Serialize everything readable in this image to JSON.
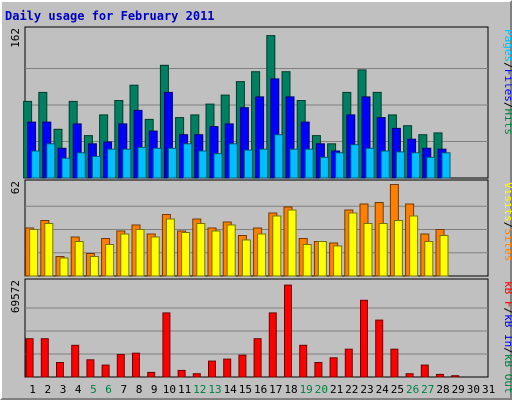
{
  "title": "Daily usage for February 2011",
  "chart_data": [
    {
      "type": "bar",
      "panel": "hits-files-pages",
      "max_label": "162",
      "ylim": [
        0,
        162
      ],
      "side_labels": [
        {
          "text": "Pages",
          "color": "#00c0ff"
        },
        {
          "text": "/",
          "color": "#000000"
        },
        {
          "text": "Files",
          "color": "#0000ff"
        },
        {
          "text": "/",
          "color": "#000000"
        },
        {
          "text": "Hits",
          "color": "#008040"
        }
      ],
      "categories": [
        "1",
        "2",
        "3",
        "4",
        "5",
        "6",
        "7",
        "8",
        "9",
        "10",
        "11",
        "12",
        "13",
        "14",
        "15",
        "16",
        "17",
        "18",
        "19",
        "20",
        "21",
        "22",
        "23",
        "24",
        "25",
        "26",
        "27",
        "28",
        "29",
        "30",
        "31"
      ],
      "series": [
        {
          "name": "Hits",
          "color": "#008060",
          "values": [
            85,
            95,
            54,
            85,
            47,
            70,
            86,
            103,
            65,
            125,
            67,
            70,
            82,
            92,
            107,
            118,
            158,
            118,
            86,
            47,
            38,
            95,
            120,
            95,
            70,
            58,
            48,
            50,
            0,
            0,
            0
          ]
        },
        {
          "name": "Files",
          "color": "#0000ff",
          "values": [
            62,
            62,
            33,
            60,
            38,
            40,
            60,
            75,
            52,
            95,
            48,
            48,
            57,
            60,
            78,
            90,
            110,
            90,
            62,
            38,
            30,
            70,
            90,
            67,
            55,
            43,
            33,
            32,
            0,
            0,
            0
          ]
        },
        {
          "name": "Pages",
          "color": "#00c0ff",
          "values": [
            30,
            38,
            22,
            28,
            24,
            32,
            32,
            34,
            33,
            33,
            38,
            30,
            27,
            38,
            31,
            32,
            48,
            32,
            32,
            23,
            28,
            37,
            33,
            30,
            29,
            28,
            23,
            28,
            0,
            0,
            0
          ]
        }
      ]
    },
    {
      "type": "bar",
      "panel": "visits-sites",
      "max_label": "62",
      "ylim": [
        0,
        62
      ],
      "side_labels": [
        {
          "text": "Visits",
          "color": "#ffff00"
        },
        {
          "text": "/",
          "color": "#000000"
        },
        {
          "text": "Sites",
          "color": "#ff8000"
        }
      ],
      "categories": [
        "1",
        "2",
        "3",
        "4",
        "5",
        "6",
        "7",
        "8",
        "9",
        "10",
        "11",
        "12",
        "13",
        "14",
        "15",
        "16",
        "17",
        "18",
        "19",
        "20",
        "21",
        "22",
        "23",
        "24",
        "25",
        "26",
        "27",
        "28",
        "29",
        "30",
        "31"
      ],
      "series": [
        {
          "name": "Sites",
          "color": "#ff8000",
          "values": [
            32,
            37,
            13,
            26,
            15,
            25,
            30,
            34,
            28,
            41,
            30,
            38,
            32,
            36,
            27,
            32,
            42,
            46,
            25,
            23,
            22,
            44,
            48,
            49,
            61,
            48,
            28,
            31,
            0,
            0,
            0
          ]
        },
        {
          "name": "Visits",
          "color": "#ffff00",
          "values": [
            31,
            35,
            12,
            23,
            13,
            21,
            28,
            31,
            26,
            38,
            29,
            35,
            30,
            34,
            24,
            28,
            40,
            44,
            21,
            23,
            20,
            42,
            35,
            35,
            37,
            40,
            23,
            27,
            0,
            0,
            0
          ]
        }
      ]
    },
    {
      "type": "bar",
      "panel": "kbytes",
      "max_label": "69572",
      "ylim": [
        0,
        69572
      ],
      "side_labels": [
        {
          "text": "kB F",
          "color": "#ff0000"
        },
        {
          "text": "/",
          "color": "#000000"
        },
        {
          "text": "kB In",
          "color": "#0000ff"
        },
        {
          "text": "/",
          "color": "#000000"
        },
        {
          "text": "kB Out",
          "color": "#008040"
        }
      ],
      "categories": [
        "1",
        "2",
        "3",
        "4",
        "5",
        "6",
        "7",
        "8",
        "9",
        "10",
        "11",
        "12",
        "13",
        "14",
        "15",
        "16",
        "17",
        "18",
        "19",
        "20",
        "21",
        "22",
        "23",
        "24",
        "25",
        "26",
        "27",
        "28",
        "29",
        "30",
        "31"
      ],
      "series": [
        {
          "name": "kB F",
          "color": "#ff0000",
          "values": [
            29000,
            29000,
            11000,
            24000,
            13000,
            9000,
            17000,
            18000,
            3500,
            48500,
            5000,
            2500,
            12000,
            13500,
            16500,
            29000,
            48500,
            69500,
            24000,
            11000,
            14500,
            21000,
            58000,
            43000,
            21000,
            2500,
            9000,
            2000,
            1000,
            0,
            0
          ]
        }
      ]
    }
  ],
  "x_labels": [
    {
      "text": "1",
      "color": "#000000"
    },
    {
      "text": "2",
      "color": "#000000"
    },
    {
      "text": "3",
      "color": "#000000"
    },
    {
      "text": "4",
      "color": "#000000"
    },
    {
      "text": "5",
      "color": "#008040"
    },
    {
      "text": "6",
      "color": "#008040"
    },
    {
      "text": "7",
      "color": "#000000"
    },
    {
      "text": "8",
      "color": "#000000"
    },
    {
      "text": "9",
      "color": "#000000"
    },
    {
      "text": "10",
      "color": "#000000"
    },
    {
      "text": "11",
      "color": "#000000"
    },
    {
      "text": "12",
      "color": "#008040"
    },
    {
      "text": "13",
      "color": "#008040"
    },
    {
      "text": "14",
      "color": "#000000"
    },
    {
      "text": "15",
      "color": "#000000"
    },
    {
      "text": "16",
      "color": "#000000"
    },
    {
      "text": "17",
      "color": "#000000"
    },
    {
      "text": "18",
      "color": "#000000"
    },
    {
      "text": "19",
      "color": "#008040"
    },
    {
      "text": "20",
      "color": "#008040"
    },
    {
      "text": "21",
      "color": "#000000"
    },
    {
      "text": "22",
      "color": "#000000"
    },
    {
      "text": "23",
      "color": "#000000"
    },
    {
      "text": "24",
      "color": "#000000"
    },
    {
      "text": "25",
      "color": "#000000"
    },
    {
      "text": "26",
      "color": "#008040"
    },
    {
      "text": "27",
      "color": "#008040"
    },
    {
      "text": "28",
      "color": "#000000"
    },
    {
      "text": "29",
      "color": "#000000"
    },
    {
      "text": "30",
      "color": "#000000"
    },
    {
      "text": "31",
      "color": "#000000"
    }
  ]
}
